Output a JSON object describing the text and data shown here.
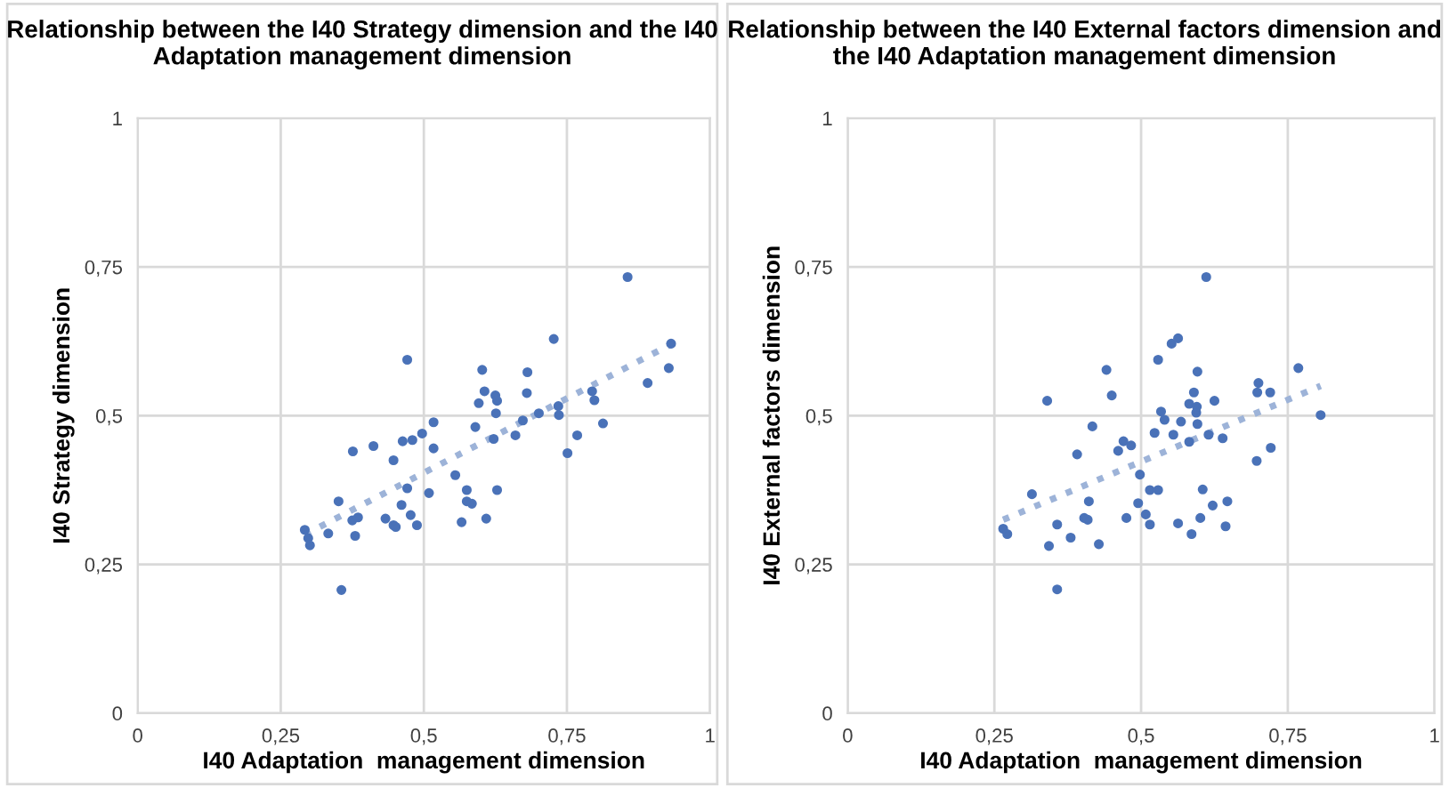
{
  "chart_data": [
    {
      "type": "scatter",
      "title": "Relationship between the I40 Strategy dimension and the I40 Adaptation management dimension",
      "xlabel": "I40 Adaptation  management dimension",
      "ylabel": "I40 Strategy dimension",
      "xlim": [
        0,
        1
      ],
      "ylim": [
        0,
        1
      ],
      "xticks": [
        0,
        {
          "value": 0.25,
          "label": "0,25"
        },
        {
          "value": 0.5,
          "label": "0,5"
        },
        {
          "value": 0.75,
          "label": "0,75"
        },
        1
      ],
      "yticks": [
        0,
        {
          "value": 0.25,
          "label": "0,25"
        },
        {
          "value": 0.5,
          "label": "0,5"
        },
        {
          "value": 0.75,
          "label": "0,75"
        },
        1
      ],
      "grid": true,
      "series": [
        {
          "marker": "circle",
          "color": "#4a72b8",
          "x": [
            0.292,
            0.298,
            0.301,
            0.333,
            0.351,
            0.356,
            0.376,
            0.375,
            0.38,
            0.385,
            0.412,
            0.433,
            0.447,
            0.447,
            0.451,
            0.463,
            0.461,
            0.471,
            0.471,
            0.477,
            0.48,
            0.488,
            0.497,
            0.509,
            0.517,
            0.517,
            0.555,
            0.566,
            0.575,
            0.575,
            0.584,
            0.59,
            0.596,
            0.602,
            0.606,
            0.609,
            0.622,
            0.625,
            0.628,
            0.626,
            0.628,
            0.66,
            0.673,
            0.681,
            0.68,
            0.701,
            0.727,
            0.735,
            0.736,
            0.751,
            0.768,
            0.794,
            0.798,
            0.813,
            0.856,
            0.891,
            0.928,
            0.932
          ],
          "values": [
            0.308,
            0.294,
            0.282,
            0.302,
            0.356,
            0.207,
            0.44,
            0.324,
            0.298,
            0.329,
            0.449,
            0.327,
            0.425,
            0.316,
            0.313,
            0.457,
            0.35,
            0.594,
            0.378,
            0.333,
            0.459,
            0.316,
            0.47,
            0.37,
            0.489,
            0.445,
            0.4,
            0.321,
            0.375,
            0.356,
            0.352,
            0.481,
            0.521,
            0.577,
            0.541,
            0.327,
            0.461,
            0.534,
            0.525,
            0.504,
            0.375,
            0.467,
            0.492,
            0.573,
            0.538,
            0.504,
            0.629,
            0.516,
            0.501,
            0.437,
            0.467,
            0.541,
            0.526,
            0.487,
            0.733,
            0.555,
            0.58,
            0.621
          ]
        },
        {
          "type": "line",
          "color": "#9db3d8",
          "line_style": "dotted",
          "x": [
            0.292,
            0.932
          ],
          "values": [
            0.3,
            0.62
          ]
        }
      ]
    },
    {
      "type": "scatter",
      "title": "Relationship between the I40 External factors dimension and the I40 Adaptation management dimension",
      "xlabel": "I40 Adaptation  management dimension",
      "ylabel": "I40 External factors dimension",
      "xlim": [
        0,
        1
      ],
      "ylim": [
        0,
        1
      ],
      "xticks": [
        0,
        {
          "value": 0.25,
          "label": "0,25"
        },
        {
          "value": 0.5,
          "label": "0,5"
        },
        {
          "value": 0.75,
          "label": "0,75"
        },
        1
      ],
      "yticks": [
        0,
        {
          "value": 0.25,
          "label": "0,25"
        },
        {
          "value": 0.5,
          "label": "0,5"
        },
        {
          "value": 0.75,
          "label": "0,75"
        },
        1
      ],
      "grid": true,
      "series": [
        {
          "marker": "circle",
          "color": "#4a72b8",
          "x": [
            0.265,
            0.272,
            0.314,
            0.34,
            0.343,
            0.357,
            0.357,
            0.38,
            0.391,
            0.403,
            0.409,
            0.411,
            0.417,
            0.428,
            0.441,
            0.45,
            0.461,
            0.47,
            0.475,
            0.483,
            0.495,
            0.498,
            0.508,
            0.515,
            0.515,
            0.523,
            0.529,
            0.529,
            0.534,
            0.54,
            0.552,
            0.563,
            0.555,
            0.563,
            0.568,
            0.582,
            0.582,
            0.586,
            0.59,
            0.594,
            0.596,
            0.595,
            0.596,
            0.601,
            0.605,
            0.611,
            0.615,
            0.622,
            0.625,
            0.639,
            0.644,
            0.647,
            0.697,
            0.698,
            0.7,
            0.72,
            0.721,
            0.768,
            0.806
          ],
          "values": [
            0.31,
            0.301,
            0.368,
            0.525,
            0.281,
            0.317,
            0.208,
            0.295,
            0.435,
            0.328,
            0.325,
            0.356,
            0.482,
            0.284,
            0.577,
            0.534,
            0.441,
            0.457,
            0.328,
            0.45,
            0.353,
            0.401,
            0.334,
            0.375,
            0.317,
            0.471,
            0.375,
            0.594,
            0.507,
            0.493,
            0.621,
            0.63,
            0.468,
            0.319,
            0.49,
            0.52,
            0.456,
            0.301,
            0.539,
            0.505,
            0.574,
            0.515,
            0.486,
            0.328,
            0.376,
            0.733,
            0.468,
            0.349,
            0.525,
            0.462,
            0.314,
            0.356,
            0.424,
            0.539,
            0.555,
            0.539,
            0.446,
            0.58,
            0.501
          ]
        },
        {
          "type": "line",
          "color": "#9db3d8",
          "line_style": "dotted",
          "x": [
            0.265,
            0.806
          ],
          "values": [
            0.325,
            0.55
          ]
        }
      ]
    }
  ]
}
